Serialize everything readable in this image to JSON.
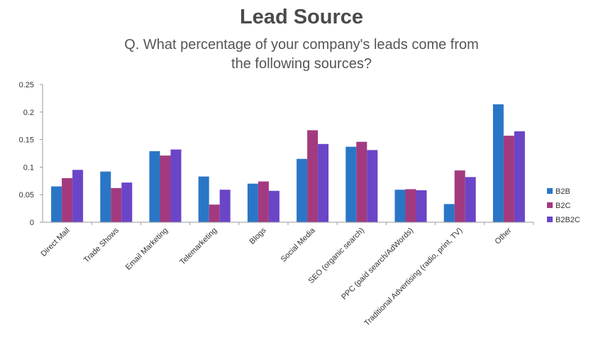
{
  "chart_data": {
    "type": "bar",
    "title": "Lead Source",
    "subtitle": "Q. What percentage of your company's leads come from the following sources?",
    "xlabel": "",
    "ylabel": "",
    "ylim": [
      0,
      0.25
    ],
    "yticks": [
      "0",
      "0.05",
      "0.1",
      "0.15",
      "0.2",
      "0.25"
    ],
    "grid": false,
    "legend_position": "right",
    "categories": [
      "Direct Mail",
      "Trade Shows",
      "Email Marketing",
      "Telemarketing",
      "Blogs",
      "Social Media",
      "SEO (organic search)",
      "PPC (paid search/AdWords)",
      "Traditional Advertising (radio, print, TV)",
      "Other"
    ],
    "series": [
      {
        "name": "B2B",
        "color": "#2a76c6",
        "values": [
          0.065,
          0.092,
          0.129,
          0.083,
          0.07,
          0.115,
          0.137,
          0.059,
          0.033,
          0.214
        ]
      },
      {
        "name": "B2C",
        "color": "#a33a7f",
        "values": [
          0.08,
          0.062,
          0.121,
          0.032,
          0.074,
          0.167,
          0.146,
          0.06,
          0.094,
          0.157
        ]
      },
      {
        "name": "B2B2C",
        "color": "#6a45c8",
        "values": [
          0.095,
          0.072,
          0.132,
          0.059,
          0.057,
          0.142,
          0.131,
          0.058,
          0.082,
          0.165
        ]
      }
    ]
  }
}
